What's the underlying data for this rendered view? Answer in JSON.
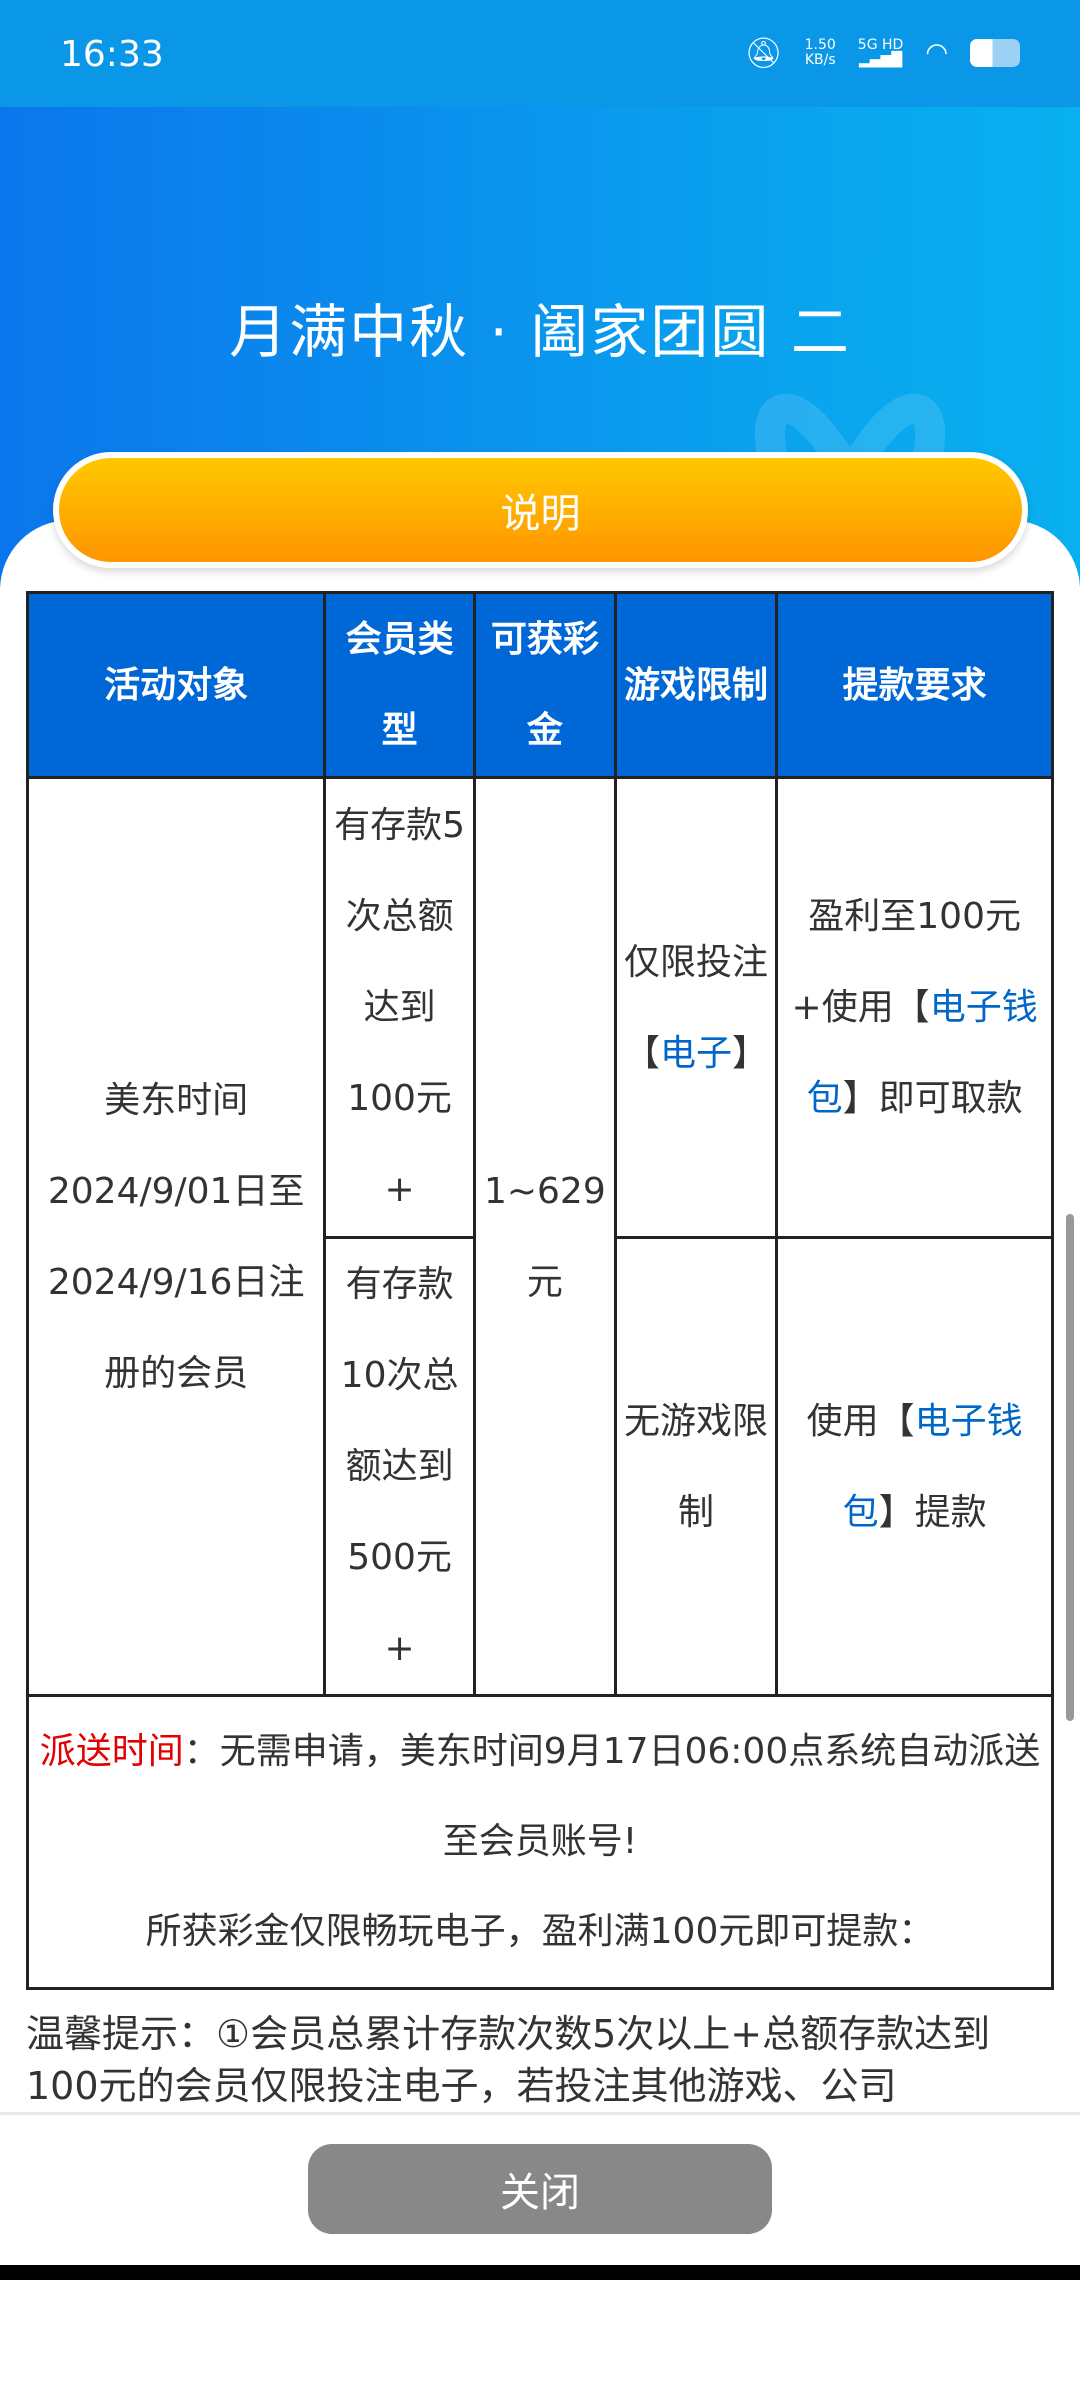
{
  "status_bar": {
    "time": "16:33",
    "net_speed": "1.50",
    "net_unit": "KB/s",
    "network": "5G HD",
    "icons": [
      "mute-bell-icon",
      "signal-icon",
      "wifi-icon",
      "battery-icon"
    ]
  },
  "header": {
    "title": "月满中秋 · 阖家团圆 二",
    "explain_button": "说明"
  },
  "table": {
    "headers": [
      "活动对象",
      "会员类型",
      "可获彩金",
      "游戏限制",
      "提款要求"
    ],
    "target": "美东时间2024/9/01日至2024/9/16日注册的会员",
    "bonus": "1~629元",
    "rows": [
      {
        "member_type": "有存款5次总额达到100元+",
        "game_pre": "仅限投注【",
        "game_link": "电子",
        "game_post": "】",
        "withdraw_pre": "盈利至100元+使用【",
        "withdraw_link": "电子钱包",
        "withdraw_post": "】即可取款"
      },
      {
        "member_type": "有存款10次总额达到500元+",
        "game": "无游戏限制",
        "withdraw_pre": "使用【",
        "withdraw_link": "电子钱包",
        "withdraw_post": "】提款"
      }
    ],
    "footer_label": "派送时间",
    "footer_text": "：无需申请，美东时间9月17日06:00点系统自动派送至会员账号!",
    "footer_note": "所获彩金仅限畅玩电子，盈利满100元即可提款："
  },
  "tips": "温馨提示：①会员总累计存款次数5次以上+总额存款达到100元的会员仅限投注电子，若投注其他游戏、公司",
  "bottom": {
    "close_button": "关闭"
  },
  "colors": {
    "header_blue": "#0067d6",
    "link_blue": "#0067c8",
    "accent_red": "#e30000",
    "button_orange": "#ffb000"
  }
}
